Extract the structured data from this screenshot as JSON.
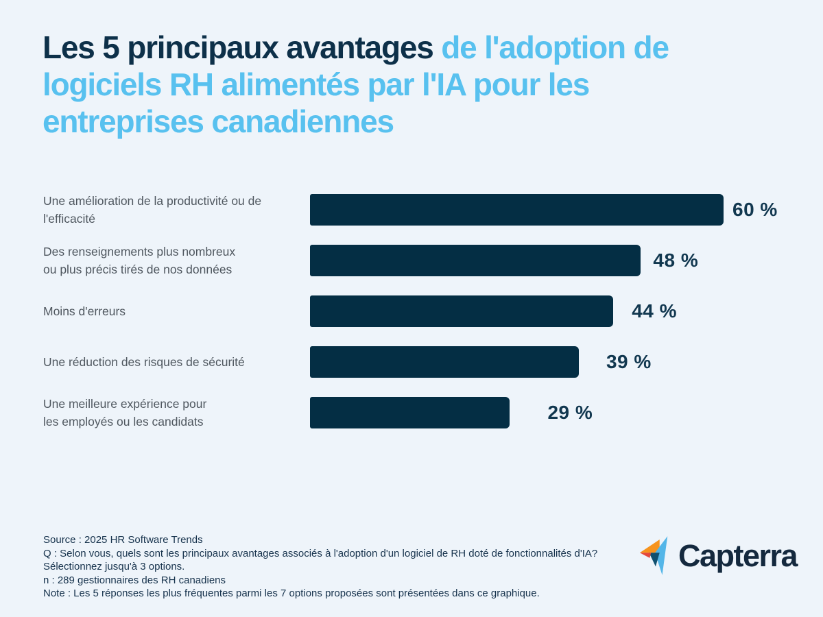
{
  "background_color": "#eef4fa",
  "title": {
    "dark_part": "Les 5 principaux avantages ",
    "light_part": "de l'adoption de\nlogiciels RH alimentés par l'IA pour les\nentreprises canadiennes",
    "dark_color": "#0d3049",
    "light_color": "#58c1ef"
  },
  "chart_data": {
    "type": "bar",
    "orientation": "horizontal",
    "title": "Les 5 principaux avantages de l'adoption de logiciels RH alimentés par l'IA pour les entreprises canadiennes",
    "categories": [
      "Une amélioration de la productivité ou de\nl'efficacité",
      "Des renseignements plus nombreux\nou plus précis tirés de nos données",
      "Moins d'erreurs",
      "Une réduction des risques de sécurité",
      "Une meilleure expérience pour\nles employés ou les candidats"
    ],
    "values": [
      60,
      48,
      44,
      39,
      29
    ],
    "value_labels": [
      "60 %",
      "48 %",
      "44 %",
      "39 %",
      "29 %"
    ],
    "unit": "%",
    "xlim": [
      0,
      60
    ],
    "grid": false,
    "legend": "none",
    "bar_color": "#042e44",
    "value_label_color": "#11374f",
    "category_label_color": "#4f575f"
  },
  "footer": {
    "lines": [
      "Source : 2025 HR Software Trends",
      "Q :  Selon vous, quels sont les principaux avantages associés à l'adoption d'un logiciel de RH doté de fonctionnalités d'IA?",
      "Sélectionnez jusqu'à 3 options.",
      "n : 289 gestionnaires des RH canadiens",
      "Note : Les 5 réponses les plus fréquentes parmi les 7 options proposées sont présentées dans ce graphique."
    ],
    "text_color": "#16324c"
  },
  "logo": {
    "wordmark": "Capterra",
    "wordmark_color": "#14293e",
    "mark_colors": {
      "orange": "#f6931d",
      "red": "#e4473c",
      "light_blue": "#54b6e8",
      "dark_blue": "#10506f"
    }
  }
}
